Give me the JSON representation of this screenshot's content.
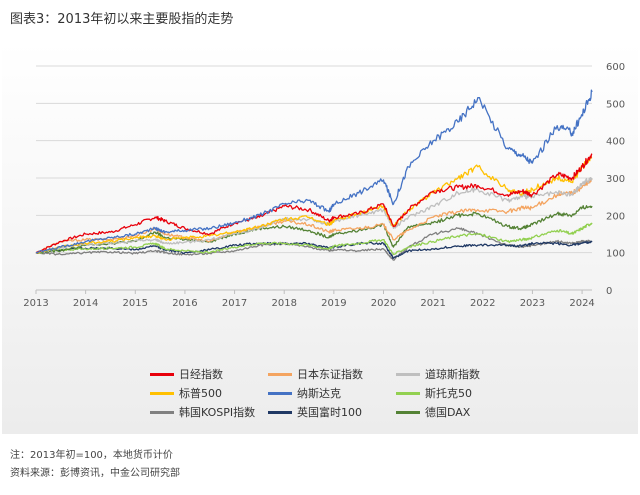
{
  "figure": {
    "title": "图表3：2013年初以来主要股指的走势"
  },
  "notes": {
    "note": "注：2013年初=100，本地货币计价",
    "source": "资料来源：彭博资讯，中金公司研究部"
  },
  "chart_data": {
    "type": "line",
    "title": "",
    "xlabel": "",
    "ylabel": "",
    "x_ticks": [
      "2013",
      "2014",
      "2015",
      "2016",
      "2017",
      "2018",
      "2019",
      "2020",
      "2021",
      "2022",
      "2023",
      "2024"
    ],
    "y_ticks": [
      "0",
      "100",
      "200",
      "300",
      "400",
      "500",
      "600"
    ],
    "xlim": [
      2013.0,
      2024.2
    ],
    "ylim": [
      0,
      600
    ],
    "y_axis_side": "right",
    "grid": "horizontal",
    "legend_position": "bottom",
    "x": [
      2013.0,
      2013.5,
      2014.0,
      2014.5,
      2015.0,
      2015.4,
      2015.6,
      2016.0,
      2016.5,
      2017.0,
      2017.5,
      2018.0,
      2018.5,
      2018.9,
      2019.0,
      2019.5,
      2020.0,
      2020.2,
      2020.5,
      2021.0,
      2021.5,
      2021.9,
      2022.5,
      2022.8,
      2023.0,
      2023.5,
      2023.8,
      2024.0,
      2024.2
    ],
    "series": [
      {
        "name": "日经指数",
        "color": "#e8000b",
        "values": [
          100,
          130,
          150,
          155,
          175,
          195,
          185,
          165,
          150,
          180,
          195,
          225,
          215,
          185,
          195,
          205,
          230,
          170,
          215,
          265,
          275,
          280,
          255,
          265,
          255,
          310,
          300,
          330,
          365
        ]
      },
      {
        "name": "日本东证指数",
        "color": "#f4a460",
        "values": [
          100,
          130,
          135,
          135,
          145,
          165,
          150,
          140,
          130,
          155,
          170,
          185,
          175,
          155,
          160,
          165,
          175,
          135,
          160,
          195,
          210,
          215,
          210,
          220,
          220,
          255,
          260,
          275,
          295
        ]
      },
      {
        "name": "道琼斯指数",
        "color": "#bfbfbf",
        "values": [
          100,
          113,
          122,
          125,
          132,
          135,
          125,
          128,
          135,
          150,
          165,
          190,
          190,
          175,
          185,
          200,
          215,
          165,
          195,
          225,
          260,
          270,
          240,
          250,
          250,
          260,
          255,
          285,
          300
        ]
      },
      {
        "name": "标普500",
        "color": "#ffc000",
        "values": [
          100,
          115,
          125,
          130,
          140,
          145,
          135,
          140,
          145,
          155,
          170,
          190,
          195,
          175,
          185,
          205,
          225,
          170,
          215,
          260,
          300,
          330,
          270,
          260,
          270,
          300,
          290,
          330,
          355
        ]
      },
      {
        "name": "纳斯达克",
        "color": "#4472c4",
        "values": [
          100,
          115,
          130,
          140,
          150,
          165,
          155,
          160,
          165,
          180,
          200,
          230,
          240,
          210,
          230,
          260,
          295,
          230,
          330,
          400,
          450,
          515,
          380,
          360,
          340,
          440,
          420,
          470,
          530
        ]
      },
      {
        "name": "斯托克50",
        "color": "#92d050",
        "values": [
          100,
          108,
          110,
          112,
          115,
          125,
          110,
          105,
          100,
          115,
          125,
          125,
          120,
          110,
          118,
          125,
          135,
          95,
          115,
          130,
          145,
          150,
          130,
          135,
          140,
          160,
          150,
          165,
          180
        ]
      },
      {
        "name": "韩国KOSPI指数",
        "color": "#808080",
        "values": [
          100,
          95,
          100,
          102,
          98,
          105,
          100,
          95,
          98,
          105,
          120,
          125,
          115,
          105,
          108,
          105,
          110,
          80,
          115,
          150,
          165,
          150,
          120,
          115,
          120,
          130,
          125,
          130,
          130
        ]
      },
      {
        "name": "英国富时100",
        "color": "#1f3864",
        "values": [
          100,
          108,
          112,
          112,
          108,
          118,
          108,
          100,
          108,
          120,
          125,
          125,
          125,
          112,
          115,
          125,
          125,
          85,
          105,
          110,
          118,
          120,
          120,
          118,
          125,
          125,
          120,
          125,
          128
        ]
      },
      {
        "name": "德国DAX",
        "color": "#548235",
        "values": [
          100,
          105,
          120,
          125,
          130,
          155,
          140,
          135,
          130,
          150,
          165,
          170,
          160,
          140,
          150,
          160,
          175,
          115,
          170,
          180,
          200,
          205,
          170,
          165,
          175,
          205,
          200,
          220,
          225
        ]
      }
    ]
  }
}
